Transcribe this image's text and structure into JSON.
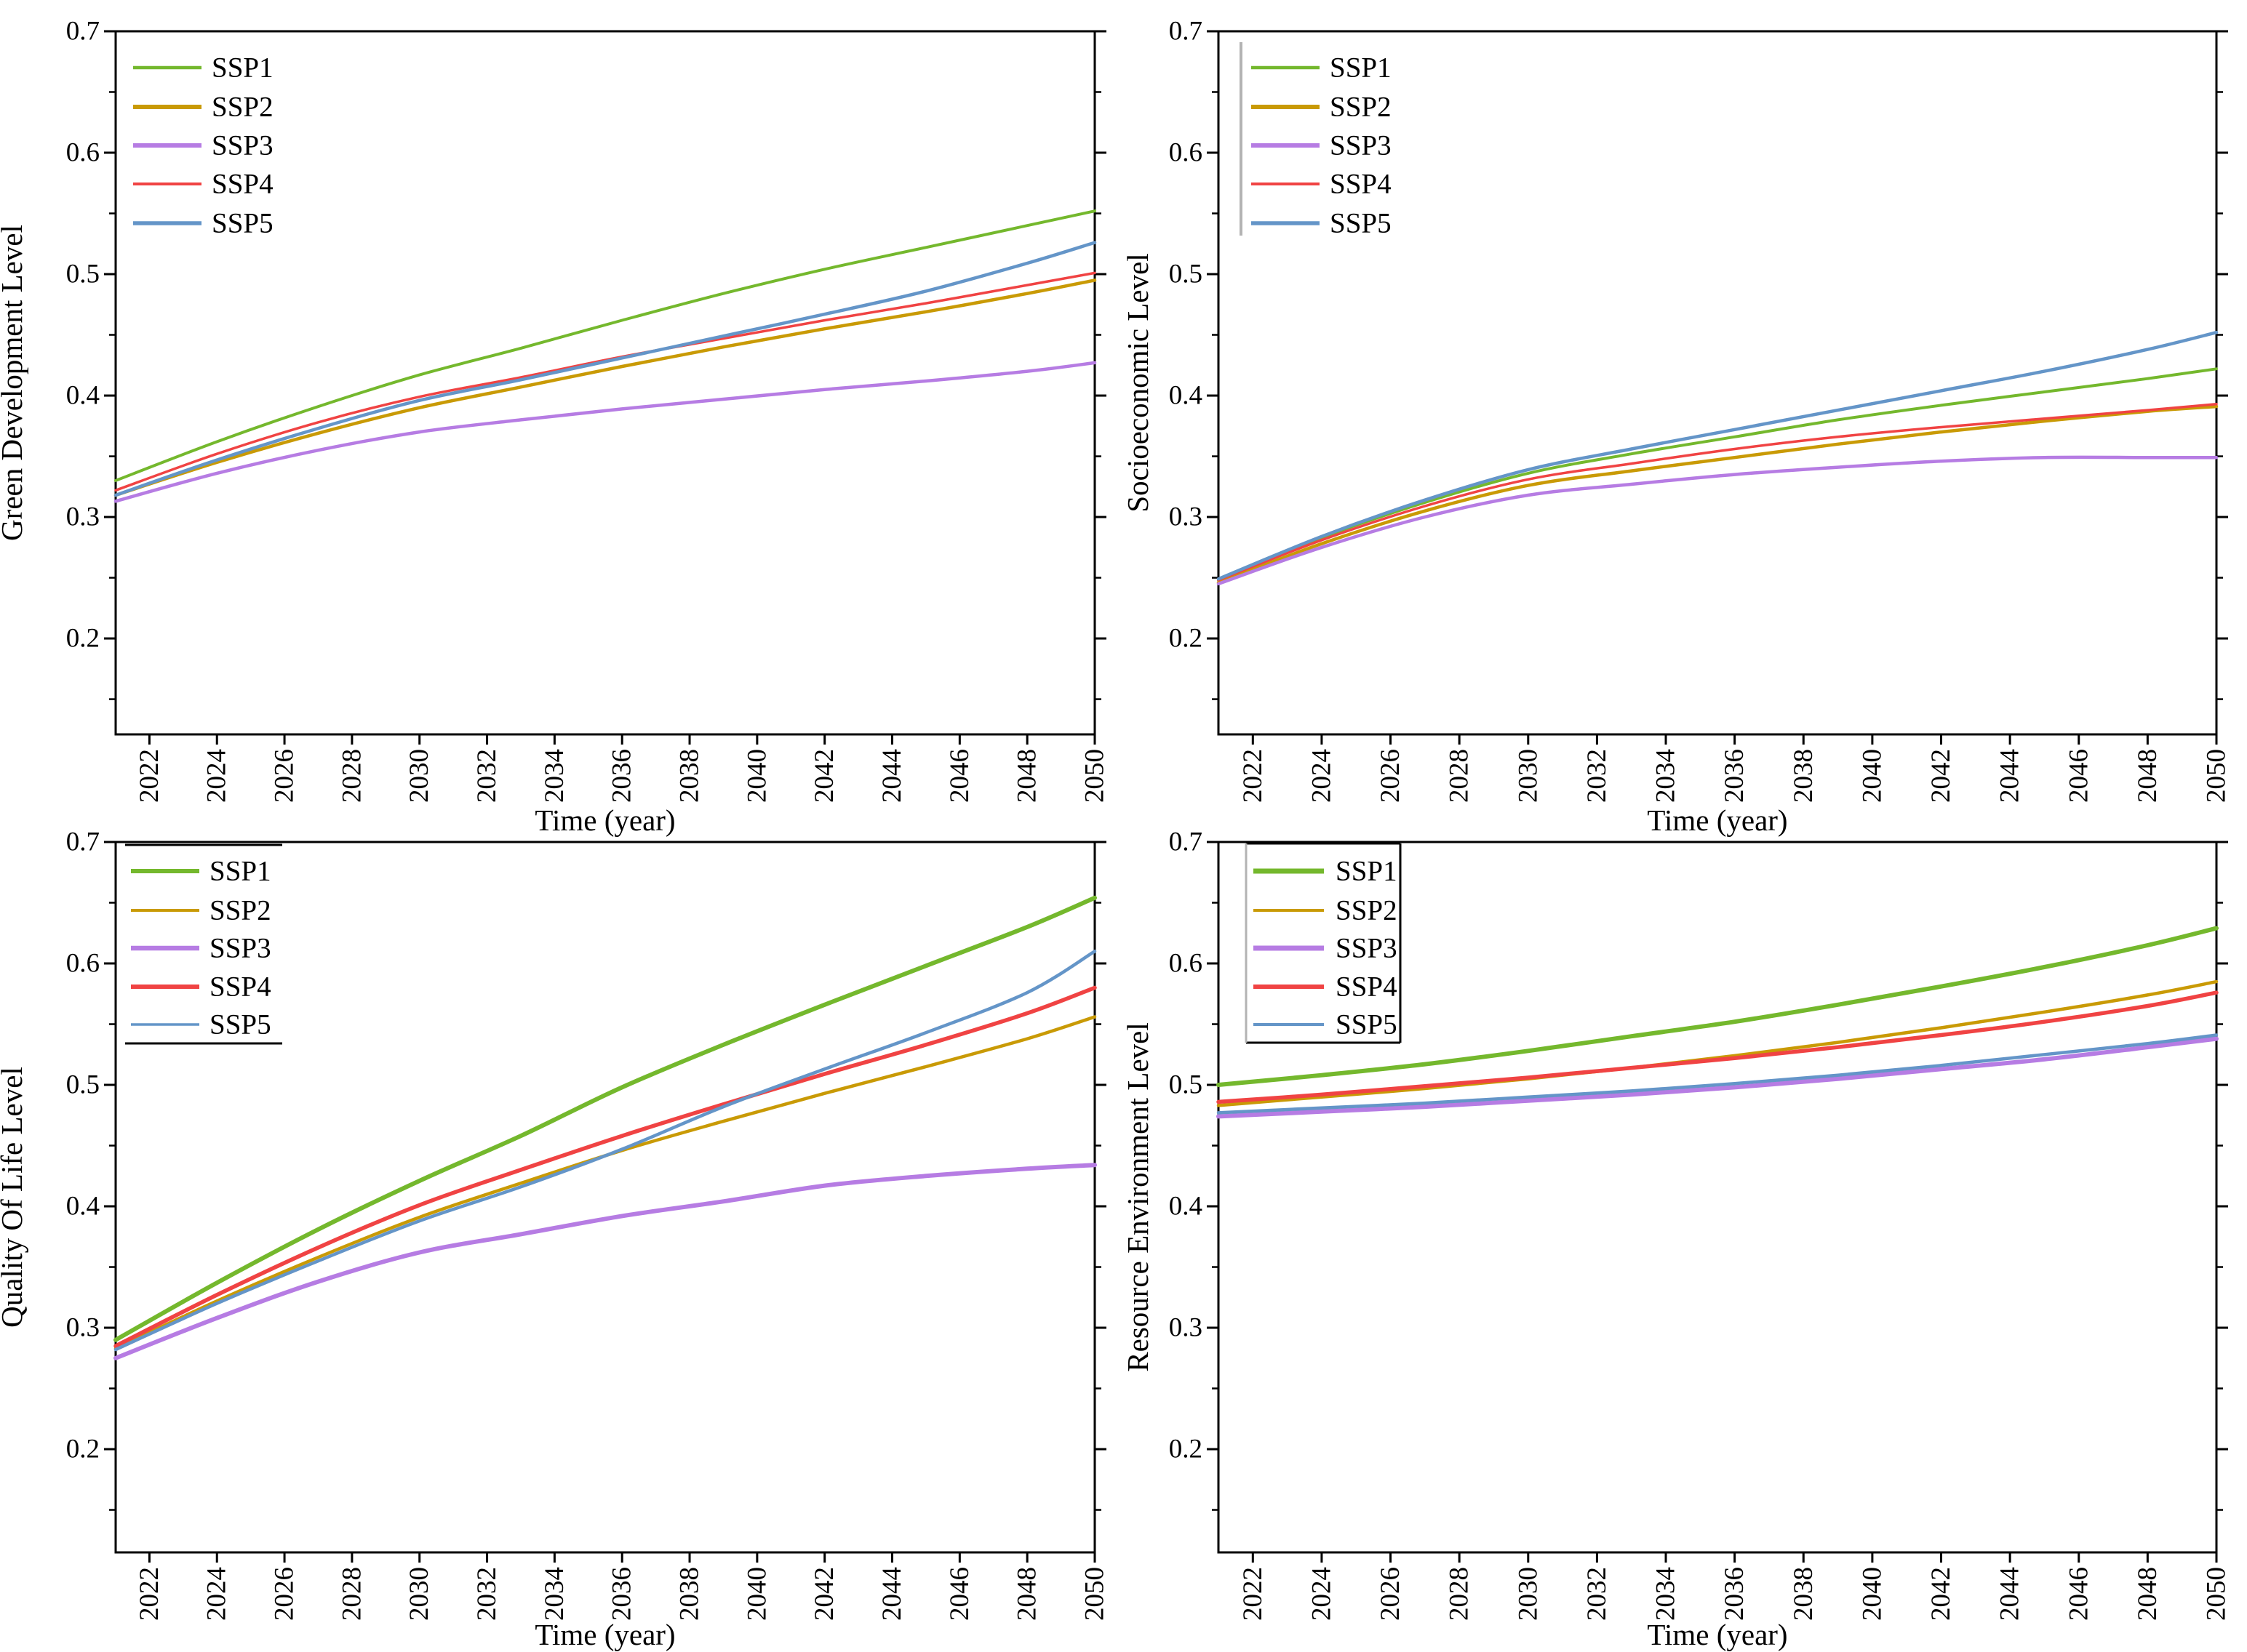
{
  "figure": {
    "background": "#ffffff",
    "series_labels": [
      "SSP1",
      "SSP2",
      "SSP3",
      "SSP4",
      "SSP5"
    ],
    "colors": {
      "SSP1": "#74B82D",
      "SSP2": "#C99A05",
      "SSP3": "#B67CE3",
      "SSP4": "#F04343",
      "SSP5": "#6495C8",
      "axis": "#000000",
      "legend_frame_gray": "#b3b3b3"
    }
  },
  "chart_data": [
    {
      "type": "line",
      "id": "green-development",
      "ylabel": "Green Development Level",
      "xlabel": "Time (year)",
      "xlim": [
        2021,
        2050
      ],
      "ylim": [
        0.121,
        0.7
      ],
      "yticks": [
        "0.2",
        "0.3",
        "0.4",
        "0.5",
        "0.6",
        "0.7"
      ],
      "xticks": [
        2022,
        2024,
        2026,
        2028,
        2030,
        2032,
        2034,
        2036,
        2038,
        2040,
        2042,
        2044,
        2046,
        2048,
        2050
      ],
      "legend_frame": "none",
      "x": [
        2021,
        2024,
        2027,
        2030,
        2033,
        2036,
        2039,
        2042,
        2045,
        2048,
        2050
      ],
      "series": [
        {
          "name": "SSP1",
          "values": [
            0.33,
            0.362,
            0.391,
            0.417,
            0.439,
            0.462,
            0.484,
            0.504,
            0.522,
            0.54,
            0.552
          ]
        },
        {
          "name": "SSP2",
          "values": [
            0.318,
            0.345,
            0.369,
            0.39,
            0.407,
            0.424,
            0.44,
            0.455,
            0.469,
            0.484,
            0.495
          ]
        },
        {
          "name": "SSP3",
          "values": [
            0.313,
            0.336,
            0.355,
            0.37,
            0.38,
            0.389,
            0.397,
            0.405,
            0.412,
            0.42,
            0.427
          ]
        },
        {
          "name": "SSP4",
          "values": [
            0.322,
            0.352,
            0.378,
            0.399,
            0.415,
            0.432,
            0.447,
            0.462,
            0.476,
            0.491,
            0.501
          ]
        },
        {
          "name": "SSP5",
          "values": [
            0.318,
            0.347,
            0.373,
            0.396,
            0.413,
            0.431,
            0.449,
            0.467,
            0.486,
            0.509,
            0.526
          ]
        }
      ]
    },
    {
      "type": "line",
      "id": "socioeconomic",
      "ylabel": "Socioeconomic Level",
      "xlabel": "Time (year)",
      "xlim": [
        2021,
        2050
      ],
      "ylim": [
        0.121,
        0.7
      ],
      "yticks": [
        "0.2",
        "0.3",
        "0.4",
        "0.5",
        "0.6",
        "0.7"
      ],
      "xticks": [
        2022,
        2024,
        2026,
        2028,
        2030,
        2032,
        2034,
        2036,
        2038,
        2040,
        2042,
        2044,
        2046,
        2048,
        2050
      ],
      "legend_frame": "gray-left",
      "x": [
        2021,
        2024,
        2027,
        2030,
        2033,
        2036,
        2039,
        2042,
        2045,
        2048,
        2050
      ],
      "series": [
        {
          "name": "SSP1",
          "values": [
            0.248,
            0.283,
            0.312,
            0.336,
            0.352,
            0.366,
            0.38,
            0.392,
            0.403,
            0.414,
            0.422
          ]
        },
        {
          "name": "SSP2",
          "values": [
            0.246,
            0.278,
            0.305,
            0.326,
            0.338,
            0.349,
            0.36,
            0.37,
            0.379,
            0.387,
            0.391
          ]
        },
        {
          "name": "SSP3",
          "values": [
            0.245,
            0.275,
            0.3,
            0.318,
            0.327,
            0.335,
            0.341,
            0.346,
            0.349,
            0.349,
            0.349
          ]
        },
        {
          "name": "SSP4",
          "values": [
            0.248,
            0.281,
            0.309,
            0.331,
            0.344,
            0.356,
            0.366,
            0.374,
            0.381,
            0.388,
            0.393
          ]
        },
        {
          "name": "SSP5",
          "values": [
            0.249,
            0.284,
            0.314,
            0.339,
            0.356,
            0.372,
            0.388,
            0.404,
            0.42,
            0.438,
            0.452
          ]
        }
      ]
    },
    {
      "type": "line",
      "id": "quality-of-life",
      "ylabel": "Quality Of Life Level",
      "xlabel": "Time (year)",
      "xlim": [
        2021,
        2050
      ],
      "ylim": [
        0.115,
        0.7
      ],
      "yticks": [
        "0.2",
        "0.3",
        "0.4",
        "0.5",
        "0.6",
        "0.7"
      ],
      "xticks": [
        2022,
        2024,
        2026,
        2028,
        2030,
        2032,
        2034,
        2036,
        2038,
        2040,
        2042,
        2044,
        2046,
        2048,
        2050
      ],
      "legend_frame": "top-bottom",
      "x": [
        2021,
        2024,
        2027,
        2030,
        2033,
        2036,
        2039,
        2042,
        2045,
        2048,
        2050
      ],
      "series": [
        {
          "name": "SSP1",
          "values": [
            0.29,
            0.337,
            0.381,
            0.421,
            0.458,
            0.498,
            0.533,
            0.566,
            0.598,
            0.63,
            0.654
          ]
        },
        {
          "name": "SSP2",
          "values": [
            0.283,
            0.322,
            0.358,
            0.391,
            0.419,
            0.446,
            0.47,
            0.493,
            0.515,
            0.538,
            0.556
          ]
        },
        {
          "name": "SSP3",
          "values": [
            0.275,
            0.308,
            0.338,
            0.362,
            0.377,
            0.392,
            0.404,
            0.417,
            0.425,
            0.431,
            0.434
          ]
        },
        {
          "name": "SSP4",
          "values": [
            0.285,
            0.327,
            0.366,
            0.401,
            0.43,
            0.458,
            0.484,
            0.509,
            0.533,
            0.559,
            0.58
          ]
        },
        {
          "name": "SSP5",
          "values": [
            0.282,
            0.32,
            0.355,
            0.388,
            0.416,
            0.447,
            0.482,
            0.513,
            0.543,
            0.576,
            0.61
          ]
        }
      ]
    },
    {
      "type": "line",
      "id": "resource-environment",
      "ylabel": "Resource Environment Level",
      "xlabel": "Time (year)",
      "xlim": [
        2021,
        2050
      ],
      "ylim": [
        0.115,
        0.7
      ],
      "yticks": [
        "0.2",
        "0.3",
        "0.4",
        "0.5",
        "0.6",
        "0.7"
      ],
      "xticks": [
        2022,
        2024,
        2026,
        2028,
        2030,
        2032,
        2034,
        2036,
        2038,
        2040,
        2042,
        2044,
        2046,
        2048,
        2050
      ],
      "legend_frame": "box",
      "x": [
        2021,
        2024,
        2027,
        2030,
        2033,
        2036,
        2039,
        2042,
        2045,
        2048,
        2050
      ],
      "series": [
        {
          "name": "SSP1",
          "values": [
            0.5,
            0.508,
            0.517,
            0.528,
            0.54,
            0.552,
            0.566,
            0.581,
            0.597,
            0.615,
            0.629
          ]
        },
        {
          "name": "SSP2",
          "values": [
            0.483,
            0.49,
            0.497,
            0.505,
            0.514,
            0.524,
            0.535,
            0.547,
            0.56,
            0.574,
            0.585
          ]
        },
        {
          "name": "SSP3",
          "values": [
            0.474,
            0.478,
            0.482,
            0.487,
            0.492,
            0.498,
            0.505,
            0.513,
            0.521,
            0.531,
            0.538
          ]
        },
        {
          "name": "SSP4",
          "values": [
            0.486,
            0.492,
            0.499,
            0.506,
            0.514,
            0.522,
            0.531,
            0.541,
            0.552,
            0.565,
            0.576
          ]
        },
        {
          "name": "SSP5",
          "values": [
            0.477,
            0.481,
            0.485,
            0.49,
            0.495,
            0.501,
            0.508,
            0.516,
            0.525,
            0.534,
            0.541
          ]
        }
      ]
    }
  ]
}
